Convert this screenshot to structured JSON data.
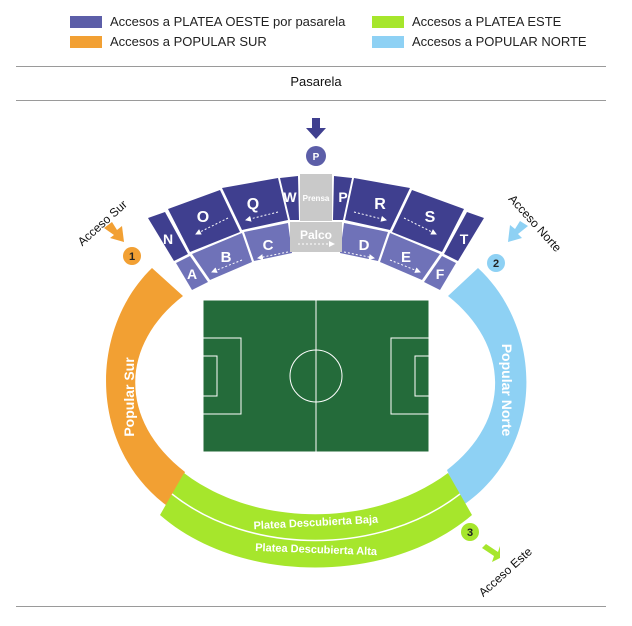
{
  "legend": [
    {
      "label": "Accesos a PLATEA OESTE por pasarela",
      "color": "#5c5ea8"
    },
    {
      "label": "Accesos a PLATEA ESTE",
      "color": "#a6e62c"
    },
    {
      "label": "Accesos a POPULAR SUR",
      "color": "#f2a033"
    },
    {
      "label": "Accesos a POPULAR NORTE",
      "color": "#8ed1f4"
    }
  ],
  "pasarela": "Pasarela",
  "stands": {
    "popular_sur": "Popular Sur",
    "popular_norte": "Popular Norte",
    "platea_baja": "Platea Descubierta Baja",
    "platea_alta": "Platea Descubierta Alta",
    "prensa": "Prensa",
    "palco": "Palco"
  },
  "sections": {
    "n": "N",
    "o": "O",
    "q": "Q",
    "w": "W",
    "p": "P",
    "r": "R",
    "s": "S",
    "t": "T",
    "a": "A",
    "b": "B",
    "c": "C",
    "d": "D",
    "e": "E",
    "f": "F"
  },
  "accesses": {
    "sur": {
      "label": "Acceso Sur",
      "number": "1"
    },
    "norte": {
      "label": "Acceso Norte",
      "number": "2"
    },
    "este": {
      "label": "Acceso Este",
      "number": "3"
    },
    "pasarela_marker": "P"
  },
  "colors": {
    "oeste_dark": "#3f3f8f",
    "oeste_light": "#6f72b8",
    "platea_este": "#a6e62c",
    "popular_sur": "#f2a033",
    "popular_norte": "#8ed1f4",
    "pitch": "#246b3a",
    "grey_block": "#c9c9c9"
  }
}
